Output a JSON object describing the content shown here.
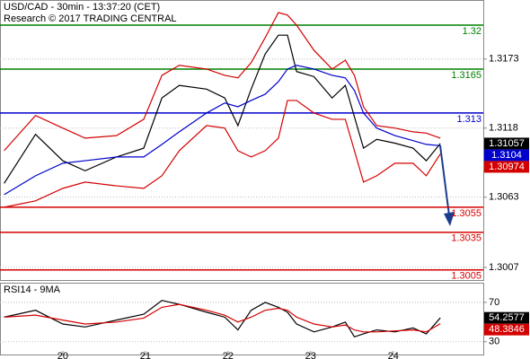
{
  "chart_data": [
    {
      "type": "line",
      "title": "USD/CAD - 30min - 13:37:20 (CET)",
      "subtitle": "Research © 2017 TRADING CENTRAL",
      "x": [
        19.29,
        19.67,
        20.0,
        20.27,
        20.65,
        20.98,
        21.2,
        21.41,
        21.74,
        21.96,
        22.12,
        22.28,
        22.45,
        22.61,
        22.72,
        22.83,
        23.04,
        23.26,
        23.42,
        23.53,
        23.64,
        23.8,
        24.02,
        24.24,
        24.4,
        24.57
      ],
      "xlim": [
        19.24,
        25.09
      ],
      "ylim": [
        1.2997,
        1.322
      ],
      "yticks": [
        1.3173,
        1.3118,
        1.3063,
        1.3007
      ],
      "grid": true,
      "series": [
        {
          "color": "#000000",
          "box": true,
          "values": [
            1.3074,
            1.3113,
            1.3092,
            1.3084,
            1.3095,
            1.3102,
            1.3142,
            1.3152,
            1.3149,
            1.3142,
            1.312,
            1.3149,
            1.3177,
            1.3192,
            1.3192,
            1.3163,
            1.3159,
            1.3142,
            1.3152,
            1.3127,
            1.3102,
            1.3109,
            1.3106,
            1.3102,
            1.3092,
            1.31057
          ]
        },
        {
          "color": "#d40000",
          "values": [
            1.31,
            1.3128,
            1.3118,
            1.311,
            1.3112,
            1.3125,
            1.316,
            1.3168,
            1.3165,
            1.316,
            1.3158,
            1.317,
            1.319,
            1.321,
            1.3208,
            1.32,
            1.318,
            1.3165,
            1.3172,
            1.316,
            1.3135,
            1.312,
            1.3118,
            1.3115,
            1.3114,
            1.311
          ]
        },
        {
          "color": "#d40000",
          "box": true,
          "values": [
            1.3055,
            1.306,
            1.307,
            1.3075,
            1.3072,
            1.307,
            1.308,
            1.31,
            1.312,
            1.3118,
            1.31,
            1.3095,
            1.31,
            1.311,
            1.314,
            1.314,
            1.313,
            1.3125,
            1.3125,
            1.31,
            1.3075,
            1.308,
            1.309,
            1.309,
            1.308,
            1.30974
          ]
        },
        {
          "color": "#0000cc",
          "box": true,
          "values": [
            1.3065,
            1.308,
            1.309,
            1.3092,
            1.3095,
            1.3095,
            1.3105,
            1.3115,
            1.313,
            1.3138,
            1.3135,
            1.314,
            1.3145,
            1.3155,
            1.3165,
            1.3168,
            1.3165,
            1.316,
            1.3158,
            1.3148,
            1.313,
            1.3118,
            1.3112,
            1.3108,
            1.3105,
            1.3104
          ]
        }
      ],
      "levels": [
        {
          "value": 1.32,
          "color": "#008000"
        },
        {
          "value": 1.3165,
          "color": "#008000"
        },
        {
          "value": 1.313,
          "color": "#0000cc"
        },
        {
          "value": 1.3055,
          "color": "#d40000"
        },
        {
          "value": 1.3035,
          "color": "#d40000"
        },
        {
          "value": 1.3005,
          "color": "#d40000"
        }
      ]
    },
    {
      "type": "line",
      "title": "RSI14 - 9MA",
      "x": [
        19.29,
        19.67,
        20.0,
        20.27,
        20.65,
        20.98,
        21.2,
        21.41,
        21.74,
        21.96,
        22.12,
        22.28,
        22.45,
        22.61,
        22.72,
        22.83,
        23.04,
        23.26,
        23.42,
        23.53,
        23.64,
        23.8,
        24.02,
        24.24,
        24.4,
        24.57
      ],
      "xlim": [
        19.24,
        25.09
      ],
      "xticks": [
        20,
        21,
        22,
        23,
        24
      ],
      "ylim": [
        17,
        90
      ],
      "yticks": [
        70,
        30
      ],
      "grid": true,
      "series": [
        {
          "color": "#000000",
          "box": true,
          "values": [
            55,
            62,
            48,
            45,
            52,
            58,
            72,
            68,
            60,
            55,
            42,
            62,
            70,
            65,
            60,
            48,
            40,
            45,
            50,
            35,
            38,
            42,
            40,
            44,
            38,
            54.2577
          ]
        },
        {
          "color": "#d40000",
          "box": true,
          "values": [
            55,
            57,
            52,
            48,
            50,
            54,
            65,
            68,
            62,
            57,
            50,
            55,
            62,
            64,
            62,
            55,
            48,
            45,
            47,
            42,
            40,
            40,
            41,
            42,
            40,
            48.3846
          ]
        }
      ]
    }
  ]
}
